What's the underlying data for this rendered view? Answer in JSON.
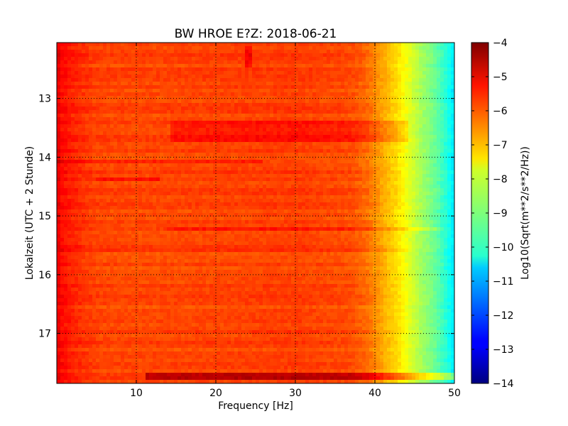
{
  "chart_data": {
    "type": "heatmap",
    "title": "BW HROE E?Z: 2018-06-21",
    "xlabel": "Frequency [Hz]",
    "ylabel": "Lokalzeit (UTC + 2 Stunde)",
    "xlim": [
      0,
      50
    ],
    "ylim": [
      12.05,
      17.85
    ],
    "y_inverted": true,
    "x_ticks": [
      10,
      20,
      30,
      40,
      50
    ],
    "x_tick_labels": [
      "10",
      "20",
      "30",
      "40",
      "50"
    ],
    "y_ticks": [
      13,
      14,
      15,
      16,
      17
    ],
    "y_tick_labels": [
      "13",
      "14",
      "15",
      "16",
      "17"
    ],
    "grid": true,
    "colormap": "jet",
    "colorbar": {
      "label": "Log10(Sqrt(m**2/s**2/Hz))",
      "range": [
        -14,
        -4
      ],
      "ticks": [
        -4,
        -5,
        -6,
        -7,
        -8,
        -9,
        -10,
        -11,
        -12,
        -13,
        -14
      ],
      "tick_labels": [
        "−4",
        "−5",
        "−6",
        "−7",
        "−8",
        "−9",
        "−10",
        "−11",
        "−12",
        "−13",
        "−14"
      ]
    },
    "frequency_profile": {
      "frequency_hz": [
        0,
        0.5,
        1.5,
        3,
        5,
        10,
        20,
        30,
        37,
        39,
        40,
        41,
        42,
        43,
        44,
        45,
        46,
        47,
        48,
        49,
        50
      ],
      "level": [
        -5.0,
        -5.3,
        -5.5,
        -5.7,
        -5.9,
        -5.95,
        -5.9,
        -5.85,
        -6.0,
        -6.3,
        -6.6,
        -6.9,
        -7.2,
        -7.5,
        -7.9,
        -8.3,
        -8.7,
        -9.0,
        -9.4,
        -9.9,
        -10.5
      ]
    },
    "band_features": [
      {
        "time_start": 13.4,
        "time_end": 13.72,
        "freq_start": 14.5,
        "freq_end": 44,
        "delta": 0.45
      },
      {
        "time_start": 14.02,
        "time_end": 14.12,
        "freq_start": 0,
        "freq_end": 26,
        "delta": 0.45
      },
      {
        "time_start": 14.35,
        "time_end": 14.43,
        "freq_start": 5,
        "freq_end": 13,
        "delta": 0.5
      },
      {
        "time_start": 15.17,
        "time_end": 15.26,
        "freq_start": 14,
        "freq_end": 48,
        "delta": 0.4
      },
      {
        "time_start": 15.55,
        "time_end": 15.62,
        "freq_start": 0,
        "freq_end": 44,
        "delta": 0.25
      },
      {
        "time_start": 15.95,
        "time_end": 16.0,
        "freq_start": 0,
        "freq_end": 10,
        "delta": 0.3
      },
      {
        "time_start": 17.68,
        "time_end": 17.78,
        "freq_start": 11,
        "freq_end": 50,
        "delta": 1.2
      },
      {
        "time_start": 12.1,
        "time_end": 12.45,
        "freq_start": 23.5,
        "freq_end": 24.5,
        "delta": 0.6
      }
    ]
  }
}
